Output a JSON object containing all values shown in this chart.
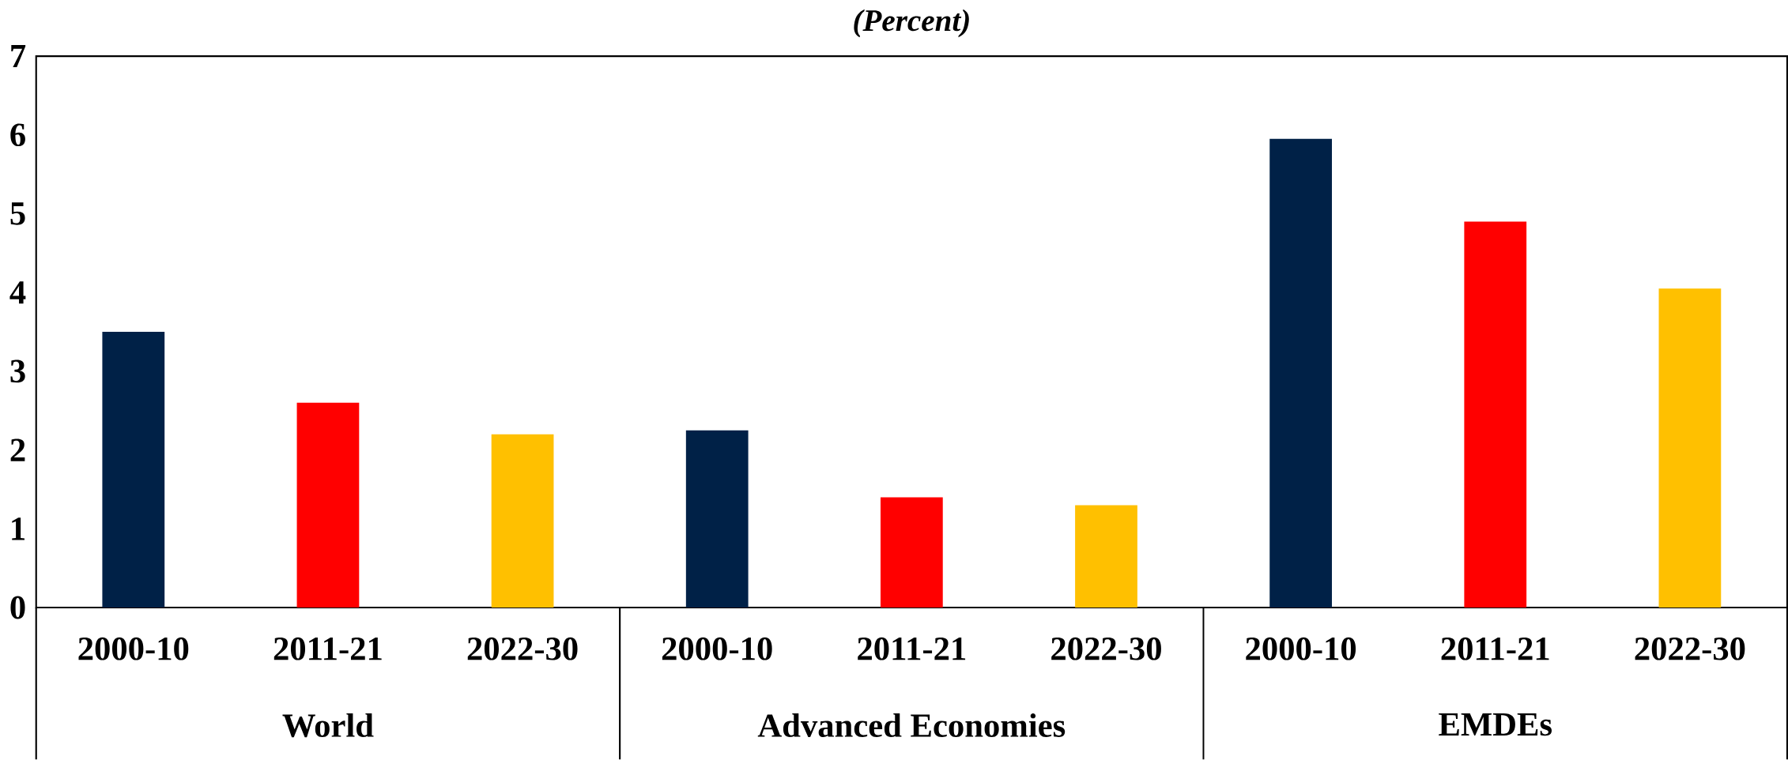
{
  "chart_data": {
    "type": "bar",
    "title": "(Percent)",
    "categories": [
      "2000-10",
      "2011-21",
      "2022-30",
      "2000-10",
      "2011-21",
      "2022-30",
      "2000-10",
      "2011-21",
      "2022-30"
    ],
    "values": [
      3.5,
      2.6,
      2.2,
      2.25,
      1.4,
      1.3,
      5.95,
      4.9,
      4.05
    ],
    "colors": [
      "#002147",
      "#ff0000",
      "#ffc000",
      "#002147",
      "#ff0000",
      "#ffc000",
      "#002147",
      "#ff0000",
      "#ffc000"
    ],
    "ylim": [
      0,
      7
    ],
    "yticks": [
      0,
      1,
      2,
      3,
      4,
      5,
      6,
      7
    ],
    "grid": false,
    "annotations": [
      "World",
      "Advanced Economies",
      "EMDEs"
    ]
  }
}
